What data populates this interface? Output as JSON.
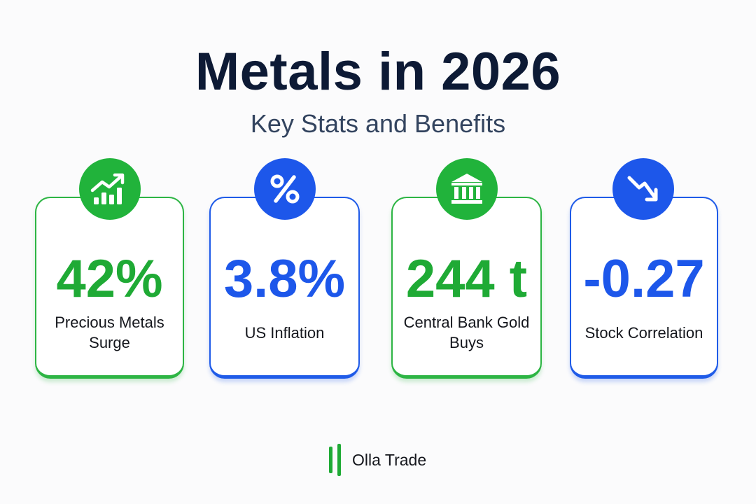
{
  "header": {
    "title": "Metals in 2026",
    "subtitle": "Key Stats and Benefits"
  },
  "cards": [
    {
      "value": "42%",
      "label": "Precious Metals Surge",
      "icon": "chart-up-icon",
      "accent": "#21b33b"
    },
    {
      "value": "3.8%",
      "label": "US Inflation",
      "icon": "percent-icon",
      "accent": "#1d57ea"
    },
    {
      "value": "244 t",
      "label": "Central Bank Gold Buys",
      "icon": "bank-icon",
      "accent": "#21b33b"
    },
    {
      "value": "-0.27",
      "label": "Stock Correlation",
      "icon": "trend-down-icon",
      "accent": "#1d57ea"
    }
  ],
  "footer": {
    "brand": "Olla Trade",
    "logo_icon": "bars-logo-icon"
  }
}
